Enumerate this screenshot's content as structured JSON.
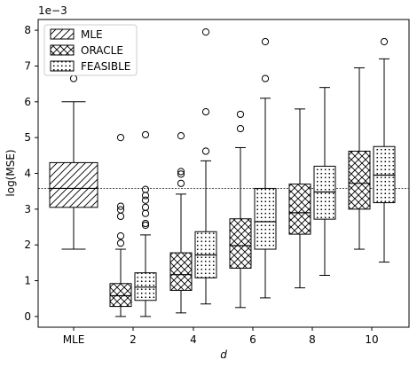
{
  "chart_data": {
    "type": "box",
    "title": "",
    "xlabel": "d",
    "ylabel": "log(MSE)",
    "y_scale_label": "1e−3",
    "ylim": [
      -0.0003,
      0.0083
    ],
    "yticks": [
      0,
      0.001,
      0.002,
      0.003,
      0.004,
      0.005,
      0.006,
      0.007,
      0.008
    ],
    "ytick_labels": [
      "0",
      "1",
      "2",
      "3",
      "4",
      "5",
      "6",
      "7",
      "8"
    ],
    "categories": [
      "MLE",
      "2",
      "4",
      "6",
      "8",
      "10"
    ],
    "reference_line": 0.00358,
    "legend": {
      "placement": "top-left",
      "entries": [
        "MLE",
        "ORACLE",
        "FEASIBLE"
      ]
    },
    "series": [
      {
        "name": "MLE",
        "pattern": "diagonal",
        "boxes": [
          {
            "category": "MLE",
            "whislo": 0.00188,
            "q1": 0.00305,
            "med": 0.00358,
            "q3": 0.0043,
            "whishi": 0.006,
            "fliers": [
              0.00665
            ]
          }
        ]
      },
      {
        "name": "ORACLE",
        "pattern": "crosshatch",
        "boxes": [
          {
            "category": "2",
            "whislo": 0.0,
            "q1": 0.00028,
            "med": 0.00058,
            "q3": 0.00092,
            "whishi": 0.00188,
            "fliers": [
              0.00205,
              0.00225,
              0.0028,
              0.00298,
              0.00308,
              0.005
            ]
          },
          {
            "category": "4",
            "whislo": 0.0001,
            "q1": 0.00073,
            "med": 0.00117,
            "q3": 0.00178,
            "whishi": 0.00342,
            "fliers": [
              0.00372,
              0.00398,
              0.00405,
              0.00505
            ]
          },
          {
            "category": "6",
            "whislo": 0.00025,
            "q1": 0.00135,
            "med": 0.00198,
            "q3": 0.00273,
            "whishi": 0.00472,
            "fliers": [
              0.00525,
              0.00565
            ]
          },
          {
            "category": "8",
            "whislo": 0.0008,
            "q1": 0.0023,
            "med": 0.0029,
            "q3": 0.0037,
            "whishi": 0.0058,
            "fliers": []
          },
          {
            "category": "10",
            "whislo": 0.00188,
            "q1": 0.003,
            "med": 0.00372,
            "q3": 0.00462,
            "whishi": 0.00695,
            "fliers": []
          }
        ]
      },
      {
        "name": "FEASIBLE",
        "pattern": "dots",
        "boxes": [
          {
            "category": "2",
            "whislo": 0.0,
            "q1": 0.00045,
            "med": 0.00082,
            "q3": 0.00122,
            "whishi": 0.00228,
            "fliers": [
              0.00255,
              0.0026,
              0.00288,
              0.00305,
              0.00325,
              0.00338,
              0.00355,
              0.00508
            ]
          },
          {
            "category": "4",
            "whislo": 0.00035,
            "q1": 0.00108,
            "med": 0.00172,
            "q3": 0.00237,
            "whishi": 0.00435,
            "fliers": [
              0.00462,
              0.00572,
              0.00795
            ]
          },
          {
            "category": "6",
            "whislo": 0.00052,
            "q1": 0.00188,
            "med": 0.00265,
            "q3": 0.00358,
            "whishi": 0.0061,
            "fliers": [
              0.00665,
              0.00768
            ]
          },
          {
            "category": "8",
            "whislo": 0.00115,
            "q1": 0.00272,
            "med": 0.00348,
            "q3": 0.0042,
            "whishi": 0.0064,
            "fliers": []
          },
          {
            "category": "10",
            "whislo": 0.00152,
            "q1": 0.00318,
            "med": 0.00395,
            "q3": 0.00475,
            "whishi": 0.0072,
            "fliers": [
              0.00768
            ]
          }
        ]
      }
    ]
  }
}
